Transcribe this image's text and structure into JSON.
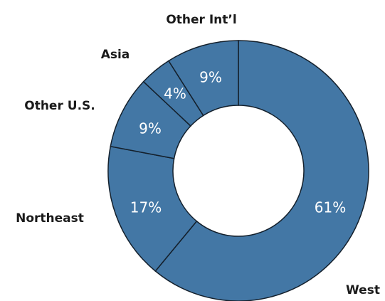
{
  "chart_data": {
    "type": "donut",
    "categories": [
      "West",
      "Northeast",
      "Other U.S.",
      "Asia",
      "Other Int’l"
    ],
    "values": [
      61,
      17,
      9,
      4,
      9
    ],
    "value_labels": [
      "61%",
      "17%",
      "9%",
      "4%",
      "9%"
    ],
    "color": "#4377a5"
  }
}
